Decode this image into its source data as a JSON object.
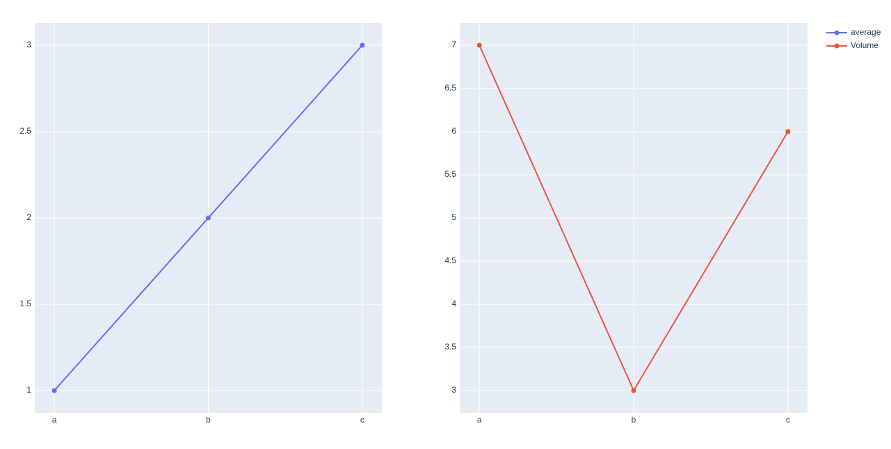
{
  "chart_data": [
    {
      "type": "line",
      "categories": [
        "a",
        "b",
        "c"
      ],
      "series": [
        {
          "name": "average",
          "color": "#636efa",
          "values": [
            1,
            2,
            3
          ]
        }
      ],
      "ylim": [
        0.871,
        3.129
      ],
      "yticks": [
        1,
        1.5,
        2,
        2.5,
        3
      ],
      "grid": true
    },
    {
      "type": "line",
      "categories": [
        "a",
        "b",
        "c"
      ],
      "series": [
        {
          "name": "Volume",
          "color": "#EF553B",
          "values": [
            7,
            3,
            6
          ]
        }
      ],
      "ylim": [
        2.742,
        7.258
      ],
      "yticks": [
        3,
        3.5,
        4,
        4.5,
        5,
        5.5,
        6,
        6.5,
        7
      ],
      "grid": true,
      "legend": "top-right"
    }
  ]
}
